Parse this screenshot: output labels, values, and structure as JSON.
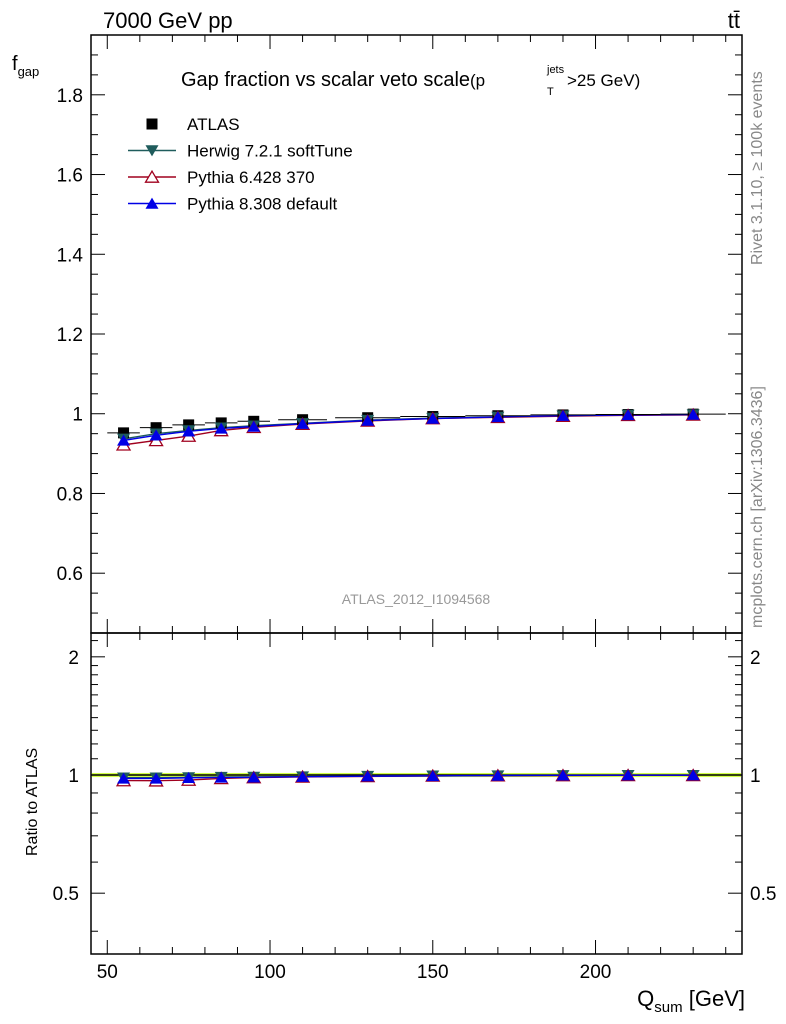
{
  "header": {
    "energy_label": "7000 GeV pp",
    "process_label": "tt̄"
  },
  "side_labels": {
    "rivet": "Rivet 3.1.10, ≥ 100k events",
    "mcplots": "mcplots.cern.ch [arXiv:1306.3436]"
  },
  "chart_data": [
    {
      "type": "line",
      "panel": "main",
      "title_main": "Gap fraction vs scalar veto scale",
      "title_sup": "jets",
      "title_sub": "T",
      "title_p": "(p",
      "title_cut": ">25 GeV)",
      "ylabel_main": "f",
      "ylabel_sub": "gap",
      "xlabel_main": "Q",
      "xlabel_sub": "sum",
      "xlabel_unit": " [GeV]",
      "watermark": "ATLAS_2012_I1094568",
      "xlim": [
        45,
        245
      ],
      "ylim": [
        0.45,
        1.95
      ],
      "ytick_labels": [
        "0.6",
        "0.8",
        "1",
        "1.2",
        "1.4",
        "1.6",
        "1.8"
      ],
      "x": [
        55,
        65,
        75,
        85,
        95,
        110,
        130,
        150,
        170,
        190,
        210,
        230
      ],
      "series": [
        {
          "name": "ATLAS",
          "marker": "square",
          "color": "#000000",
          "values": [
            0.952,
            0.965,
            0.972,
            0.977,
            0.981,
            0.985,
            0.99,
            0.993,
            0.995,
            0.997,
            0.998,
            0.999
          ]
        },
        {
          "name": "Herwig 7.2.1 softTune",
          "marker": "triangle-down",
          "color": "#1f5c5c",
          "values": [
            0.937,
            0.95,
            0.958,
            0.965,
            0.97,
            0.976,
            0.984,
            0.989,
            0.992,
            0.995,
            0.997,
            0.998
          ]
        },
        {
          "name": "Pythia 6.428 370",
          "marker": "triangle-open",
          "color": "#a0001e",
          "values": [
            0.922,
            0.933,
            0.944,
            0.958,
            0.966,
            0.974,
            0.982,
            0.988,
            0.991,
            0.994,
            0.996,
            0.997
          ]
        },
        {
          "name": "Pythia 8.308 default",
          "marker": "triangle-up",
          "color": "#0000e6",
          "values": [
            0.933,
            0.946,
            0.956,
            0.963,
            0.968,
            0.975,
            0.983,
            0.988,
            0.992,
            0.995,
            0.997,
            0.998
          ]
        }
      ]
    },
    {
      "type": "line",
      "panel": "ratio",
      "ylabel": "Ratio to ATLAS",
      "xlim": [
        45,
        245
      ],
      "ylim": [
        0.35,
        2.3
      ],
      "log_y": true,
      "band_color": "#ccff33",
      "ytick_labels": [
        "0.5",
        "1",
        "2"
      ],
      "xtick_labels": [
        "50",
        "100",
        "150",
        "200"
      ],
      "x": [
        55,
        65,
        75,
        85,
        95,
        110,
        130,
        150,
        170,
        190,
        210,
        230
      ],
      "series": [
        {
          "name": "Herwig 7.2.1 softTune",
          "marker": "triangle-down",
          "color": "#1f5c5c",
          "values": [
            0.984,
            0.984,
            0.986,
            0.988,
            0.989,
            0.991,
            0.994,
            0.996,
            0.997,
            0.998,
            0.999,
            0.999
          ]
        },
        {
          "name": "Pythia 6.428 370",
          "marker": "triangle-open",
          "color": "#a0001e",
          "values": [
            0.968,
            0.967,
            0.971,
            0.98,
            0.985,
            0.989,
            0.992,
            0.995,
            0.996,
            0.997,
            0.998,
            0.998
          ]
        },
        {
          "name": "Pythia 8.308 default",
          "marker": "triangle-up",
          "color": "#0000e6",
          "values": [
            0.98,
            0.98,
            0.984,
            0.986,
            0.987,
            0.99,
            0.993,
            0.995,
            0.997,
            0.998,
            0.999,
            0.999
          ]
        }
      ]
    }
  ]
}
